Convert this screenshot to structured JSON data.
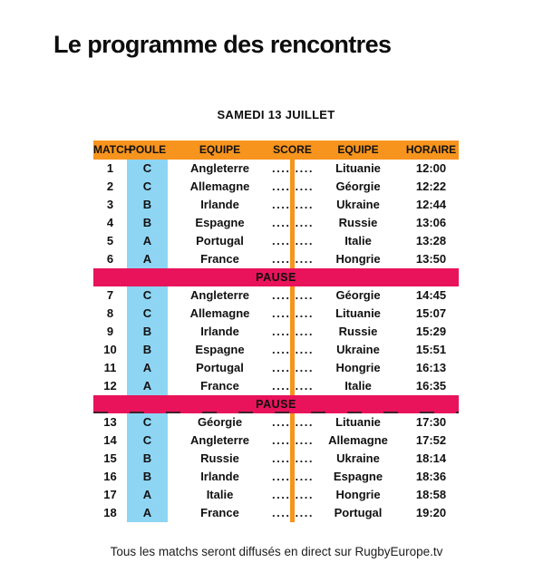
{
  "page": {
    "title": "Le programme des rencontres",
    "date_heading": "SAMEDI 13 JUILLET",
    "footer_note": "Tous les matchs seront diffusés en direct sur RugbyEurope.tv"
  },
  "table": {
    "headers": [
      "MATCH",
      "POULE",
      "EQUIPE",
      "SCORE",
      "EQUIPE",
      "HORAIRE"
    ],
    "pause_label": "PAUSE",
    "score_dots": "..........",
    "colors": {
      "header_orange": "#F7941E",
      "pause_pink": "#E8135B",
      "poule_blue": "#8ED5F4",
      "text": "#111111"
    },
    "sections": [
      {
        "rows": [
          {
            "match": "1",
            "poule": "C",
            "home": "Angleterre",
            "away": "Lituanie",
            "time": "12:00"
          },
          {
            "match": "2",
            "poule": "C",
            "home": "Allemagne",
            "away": "Géorgie",
            "time": "12:22"
          },
          {
            "match": "3",
            "poule": "B",
            "home": "Irlande",
            "away": "Ukraine",
            "time": "12:44"
          },
          {
            "match": "4",
            "poule": "B",
            "home": "Espagne",
            "away": "Russie",
            "time": "13:06"
          },
          {
            "match": "5",
            "poule": "A",
            "home": "Portugal",
            "away": "Italie",
            "time": "13:28"
          },
          {
            "match": "6",
            "poule": "A",
            "home": "France",
            "away": "Hongrie",
            "time": "13:50"
          }
        ]
      },
      {
        "rows": [
          {
            "match": "7",
            "poule": "C",
            "home": "Angleterre",
            "away": "Géorgie",
            "time": "14:45"
          },
          {
            "match": "8",
            "poule": "C",
            "home": "Allemagne",
            "away": "Lituanie",
            "time": "15:07"
          },
          {
            "match": "9",
            "poule": "B",
            "home": "Irlande",
            "away": "Russie",
            "time": "15:29"
          },
          {
            "match": "10",
            "poule": "B",
            "home": "Espagne",
            "away": "Ukraine",
            "time": "15:51"
          },
          {
            "match": "11",
            "poule": "A",
            "home": "Portugal",
            "away": "Hongrie",
            "time": "16:13"
          },
          {
            "match": "12",
            "poule": "A",
            "home": "France",
            "away": "Italie",
            "time": "16:35"
          }
        ]
      },
      {
        "rows": [
          {
            "match": "13",
            "poule": "C",
            "home": "Géorgie",
            "away": "Lituanie",
            "time": "17:30"
          },
          {
            "match": "14",
            "poule": "C",
            "home": "Angleterre",
            "away": "Allemagne",
            "time": "17:52"
          },
          {
            "match": "15",
            "poule": "B",
            "home": "Russie",
            "away": "Ukraine",
            "time": "18:14"
          },
          {
            "match": "16",
            "poule": "B",
            "home": "Irlande",
            "away": "Espagne",
            "time": "18:36"
          },
          {
            "match": "17",
            "poule": "A",
            "home": "Italie",
            "away": "Hongrie",
            "time": "18:58"
          },
          {
            "match": "18",
            "poule": "A",
            "home": "France",
            "away": "Portugal",
            "time": "19:20"
          }
        ]
      }
    ]
  }
}
